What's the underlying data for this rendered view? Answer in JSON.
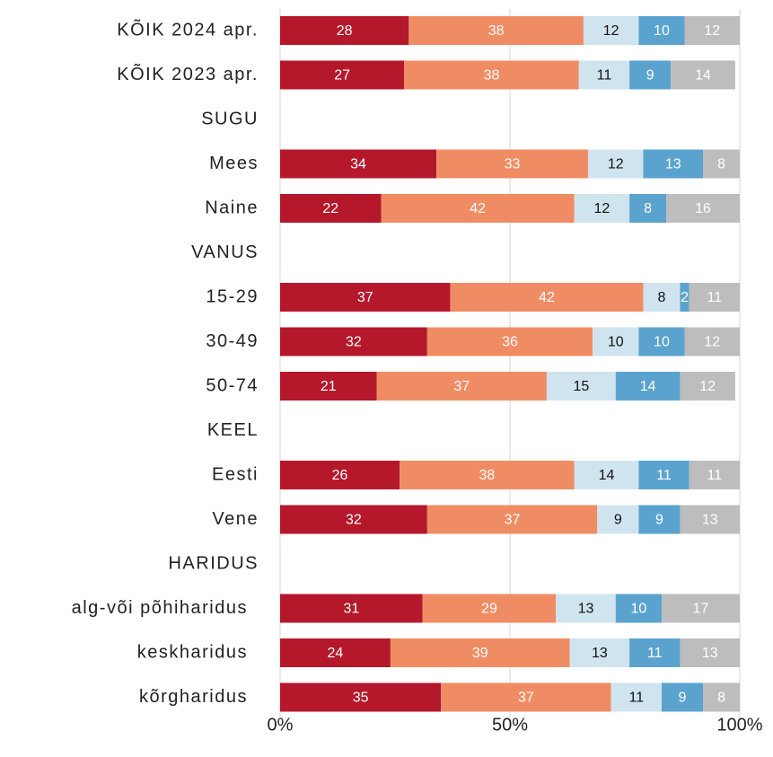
{
  "chart_data": {
    "type": "stacked-bar-horizontal",
    "categories": [
      "KÕIK 2024 apr.",
      "KÕIK 2023 apr.",
      "SUGU",
      "Mees",
      "Naine",
      "VANUS",
      "15-29",
      "30-49",
      "50-74",
      "KEEL",
      "Eesti",
      "Vene",
      "HARIDUS",
      "alg-või põhiharidus",
      "keskharidus",
      "kõrgharidus"
    ],
    "series": [
      {
        "color": "#b5182b",
        "values": [
          28,
          27,
          null,
          34,
          22,
          null,
          37,
          32,
          21,
          null,
          26,
          32,
          null,
          31,
          24,
          35
        ]
      },
      {
        "color": "#f08c64",
        "values": [
          38,
          38,
          null,
          33,
          42,
          null,
          42,
          36,
          37,
          null,
          38,
          37,
          null,
          29,
          39,
          37
        ]
      },
      {
        "color": "#d0e4f0",
        "values": [
          12,
          11,
          null,
          12,
          12,
          null,
          8,
          10,
          15,
          null,
          14,
          9,
          null,
          13,
          13,
          11
        ]
      },
      {
        "color": "#5ba3cf",
        "values": [
          10,
          9,
          null,
          13,
          8,
          null,
          2,
          10,
          14,
          null,
          11,
          9,
          null,
          10,
          11,
          9
        ]
      },
      {
        "color": "#bdbdbd",
        "values": [
          12,
          14,
          null,
          8,
          16,
          null,
          11,
          12,
          12,
          null,
          11,
          13,
          null,
          17,
          13,
          8
        ]
      }
    ],
    "xlim": [
      0,
      100
    ],
    "xticks": [
      {
        "value": 0,
        "label": "0%"
      },
      {
        "value": 50,
        "label": "50%"
      },
      {
        "value": 100,
        "label": "100%"
      }
    ],
    "grid": true
  }
}
